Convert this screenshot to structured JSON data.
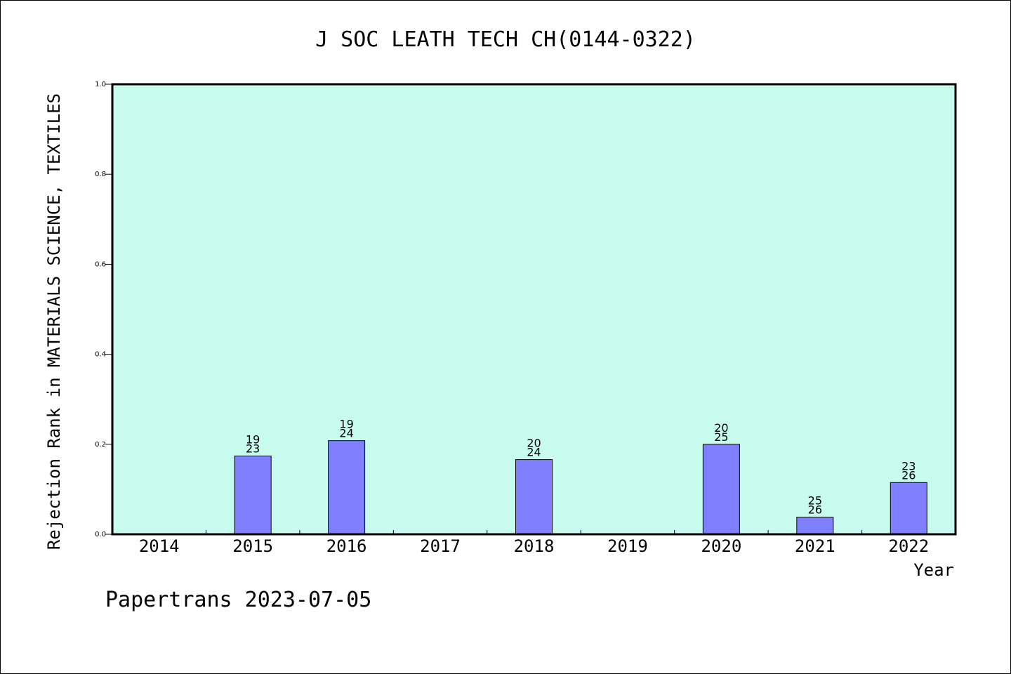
{
  "chart_data": {
    "type": "bar",
    "title": "J SOC LEATH TECH CH(0144-0322)",
    "xlabel": "Year",
    "ylabel": "Rejection Rank in MATERIALS SCIENCE, TEXTILES",
    "footer": "Papertrans 2023-07-05",
    "categories": [
      "2014",
      "2015",
      "2016",
      "2017",
      "2018",
      "2019",
      "2020",
      "2021",
      "2022"
    ],
    "values": [
      null,
      0.174,
      0.208,
      null,
      0.166,
      null,
      0.2,
      0.038,
      0.115
    ],
    "labels_top": [
      "",
      "19",
      "19",
      "",
      "20",
      "",
      "20",
      "25",
      "23"
    ],
    "labels_bottom": [
      "",
      "23",
      "24",
      "",
      "24",
      "",
      "25",
      "26",
      "26"
    ],
    "ylim": [
      0,
      1.0
    ],
    "yticks": [
      "0.0",
      "0.2",
      "0.4",
      "0.6",
      "0.8",
      "1.0"
    ],
    "grid": false,
    "colors": {
      "plot_background": "#c8fcee",
      "bar_fill": "#8080ff",
      "bar_stroke": "#000000"
    }
  }
}
